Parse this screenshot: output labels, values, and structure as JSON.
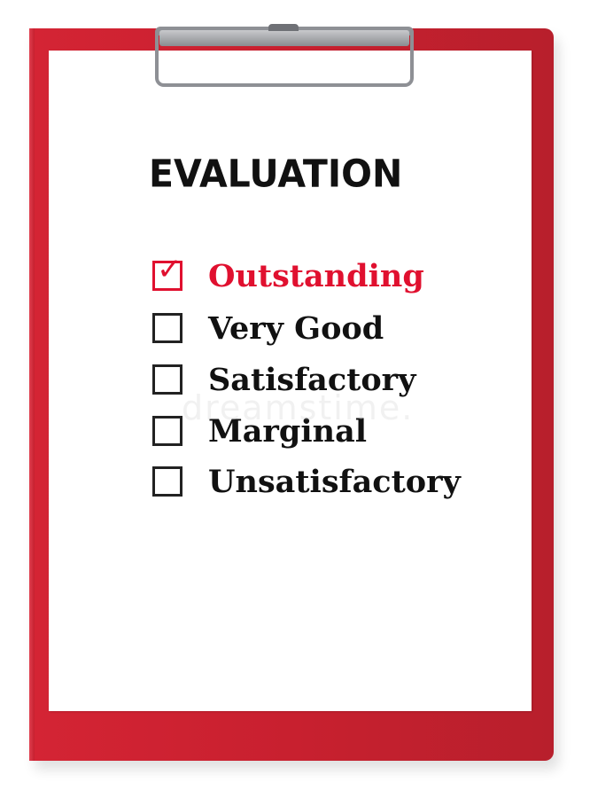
{
  "title": "EVALUATION",
  "options": [
    {
      "label": "Outstanding",
      "checked": true
    },
    {
      "label": "Very Good",
      "checked": false
    },
    {
      "label": "Satisfactory",
      "checked": false
    },
    {
      "label": "Marginal",
      "checked": false
    },
    {
      "label": "Unsatisfactory",
      "checked": false
    }
  ],
  "check_glyph": "✓",
  "watermark": "dreamstime.",
  "colors": {
    "clipboard": "#c8202f",
    "selected": "#e0102f",
    "text": "#111111"
  }
}
